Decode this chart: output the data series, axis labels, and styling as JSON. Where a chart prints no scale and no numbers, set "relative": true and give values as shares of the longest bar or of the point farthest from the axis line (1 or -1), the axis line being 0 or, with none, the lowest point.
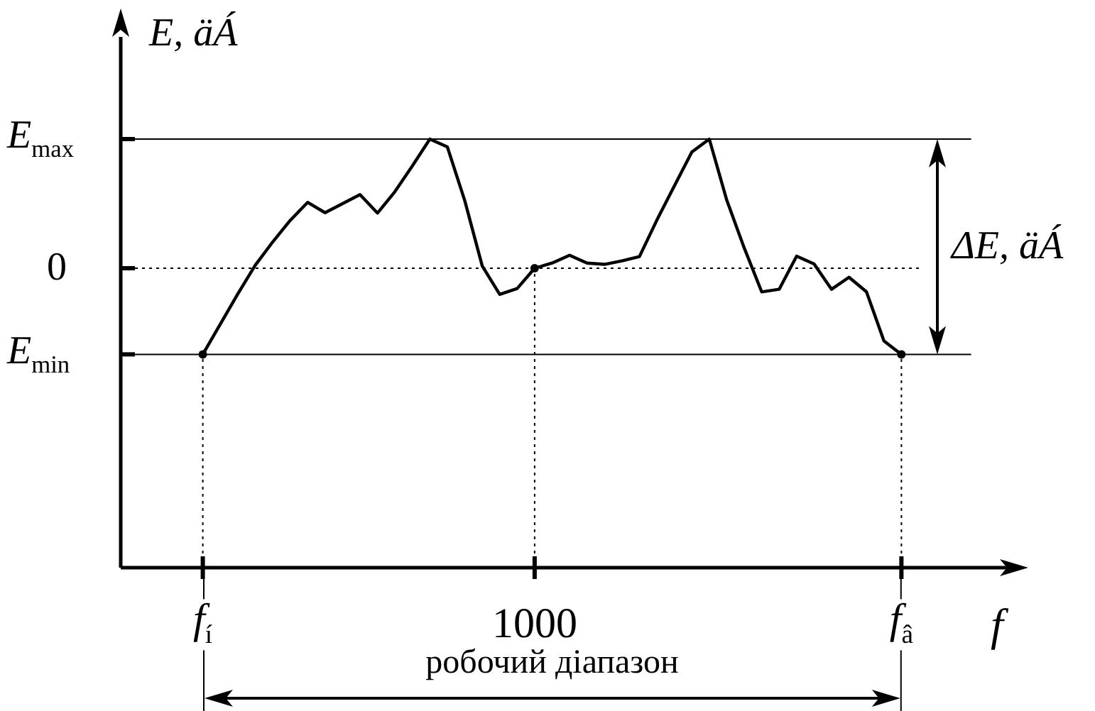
{
  "chart_data": {
    "type": "line",
    "relative": true,
    "xlabel": "f",
    "ylabel": "E, äÁ",
    "categories": [
      "f$_{í}$",
      null,
      null,
      null,
      null,
      null,
      null,
      null,
      null,
      null,
      null,
      null,
      null,
      null,
      null,
      null,
      null,
      null,
      null,
      "1000",
      null,
      null,
      null,
      null,
      null,
      null,
      null,
      null,
      null,
      null,
      null,
      null,
      null,
      null,
      null,
      null,
      null,
      null,
      null,
      null,
      "f$_{â}$"
    ],
    "series": [
      {
        "color": "#000000",
        "values": [
          -0.667,
          -0.433,
          -0.2,
          0.023,
          0.203,
          0.37,
          0.51,
          0.43,
          0.5,
          0.57,
          0.427,
          0.593,
          0.793,
          1,
          0.94,
          0.523,
          0.017,
          -0.203,
          -0.157,
          0,
          0.04,
          0.1,
          0.04,
          0.03,
          0.057,
          0.09,
          0.373,
          0.637,
          0.9,
          1,
          0.527,
          0.157,
          -0.183,
          -0.163,
          0.093,
          0.033,
          -0.163,
          -0.07,
          -0.183,
          -0.563,
          -0.667
        ]
      }
    ],
    "ref_lines": [
      {
        "axis": "y",
        "value": 1,
        "label": "E$_{max}$"
      },
      {
        "axis": "y",
        "value": 0,
        "label": "0",
        "line_style": "dotted"
      },
      {
        "axis": "y",
        "value": -0.667,
        "label": "E$_{min}$"
      }
    ],
    "annotations": [
      "ΔE, äÁ",
      "робочий діапазон"
    ]
  }
}
